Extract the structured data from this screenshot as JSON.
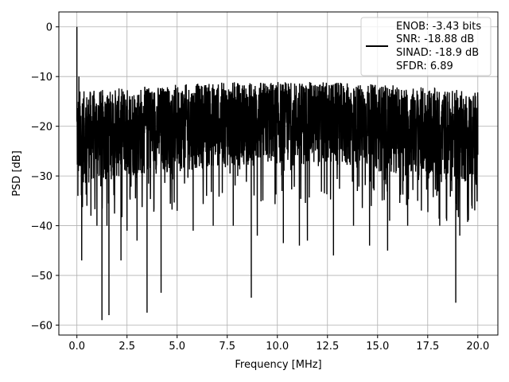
{
  "chart_data": {
    "type": "line",
    "title": "",
    "xlabel": "Frequency [MHz]",
    "ylabel": "PSD [dB]",
    "xlim": [
      -0.9,
      21.0
    ],
    "ylim": [
      -62,
      3
    ],
    "xticks": [
      0.0,
      2.5,
      5.0,
      7.5,
      10.0,
      12.5,
      15.0,
      17.5,
      20.0
    ],
    "xtick_labels": [
      "0.0",
      "2.5",
      "5.0",
      "7.5",
      "10.0",
      "12.5",
      "15.0",
      "17.5",
      "20.0"
    ],
    "yticks": [
      0,
      -10,
      -20,
      -30,
      -40,
      -50,
      -60
    ],
    "ytick_labels": [
      "0",
      "−10",
      "−20",
      "−30",
      "−40",
      "−50",
      "−60"
    ],
    "grid": true,
    "legend_position": "top-right",
    "colors": {
      "series": "#000000",
      "grid": "#b0b0b0"
    },
    "series": [
      {
        "name": "",
        "noise_band": {
          "x_range": [
            0.0,
            20.0
          ],
          "typical_max_db": [
            -13,
            -11
          ],
          "typical_min_db": [
            -32,
            -28
          ],
          "median_db": -21
        },
        "points": [
          [
            0.0,
            0.0
          ],
          [
            0.02,
            -25
          ],
          [
            0.05,
            -34
          ],
          [
            0.08,
            -22
          ],
          [
            0.1,
            -10
          ],
          [
            0.15,
            -13
          ],
          [
            0.18,
            -28
          ],
          [
            0.24,
            -47
          ],
          [
            0.3,
            -30
          ],
          [
            0.5,
            -36
          ],
          [
            0.7,
            -38
          ],
          [
            1.0,
            -40
          ],
          [
            1.25,
            -59
          ],
          [
            1.5,
            -40
          ],
          [
            1.6,
            -58
          ],
          [
            2.2,
            -47
          ],
          [
            2.5,
            -41
          ],
          [
            3.0,
            -43
          ],
          [
            3.5,
            -57.5
          ],
          [
            4.2,
            -53.5
          ],
          [
            5.0,
            -37
          ],
          [
            5.8,
            -41
          ],
          [
            6.8,
            -40
          ],
          [
            7.8,
            -40
          ],
          [
            8.7,
            -54.5
          ],
          [
            9.0,
            -42
          ],
          [
            10.3,
            -43.5
          ],
          [
            11.1,
            -44
          ],
          [
            11.5,
            -43
          ],
          [
            12.8,
            -46
          ],
          [
            13.8,
            -40
          ],
          [
            14.6,
            -44
          ],
          [
            15.5,
            -45
          ],
          [
            15.6,
            -39
          ],
          [
            16.5,
            -40
          ],
          [
            17.0,
            -35
          ],
          [
            18.1,
            -40
          ],
          [
            18.9,
            -55.5
          ],
          [
            19.1,
            -42
          ],
          [
            19.7,
            -36
          ],
          [
            20.0,
            -16
          ]
        ]
      }
    ],
    "legend": {
      "lines": [
        "ENOB: -3.43 bits",
        "SNR: -18.88 dB",
        "SINAD: -18.9 dB",
        "SFDR: 6.89"
      ]
    }
  }
}
